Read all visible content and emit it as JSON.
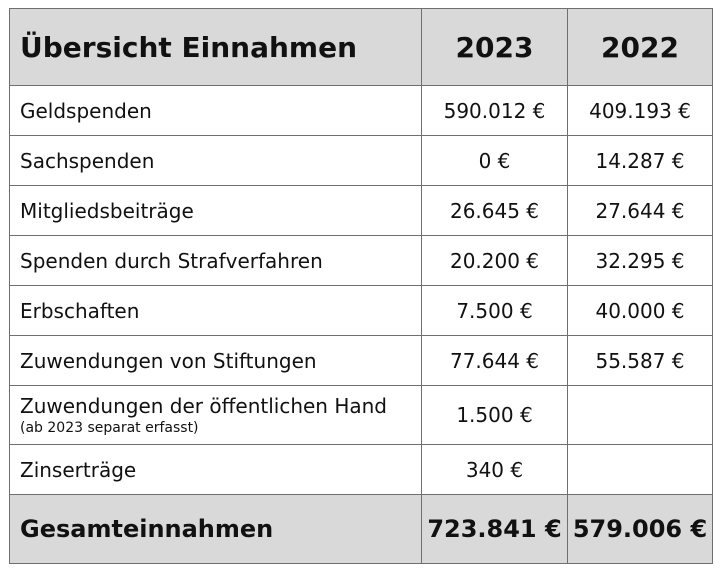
{
  "table": {
    "title": "Übersicht Einnahmen",
    "years": [
      "2023",
      "2022"
    ],
    "rows": [
      {
        "label": "Geldspenden",
        "v2023": "590.012 €",
        "v2022": "409.193 €"
      },
      {
        "label": "Sachspenden",
        "v2023": "0 €",
        "v2022": "14.287 €"
      },
      {
        "label": "Mitgliedsbeiträge",
        "v2023": "26.645 €",
        "v2022": "27.644 €"
      },
      {
        "label": "Spenden durch Strafverfahren",
        "v2023": "20.200 €",
        "v2022": "32.295 €"
      },
      {
        "label": "Erbschaften",
        "v2023": "7.500 €",
        "v2022": "40.000 €"
      },
      {
        "label": "Zuwendungen von Stiftungen",
        "v2023": "77.644 €",
        "v2022": "55.587 €"
      },
      {
        "label": "Zuwendungen der öffentlichen Hand",
        "note": "(ab 2023 separat erfasst)",
        "v2023": "1.500 €",
        "v2022": ""
      },
      {
        "label": "Zinserträge",
        "v2023": "340 €",
        "v2022": ""
      }
    ],
    "total": {
      "label": "Gesamteinnahmen",
      "v2023": "723.841 €",
      "v2022": "579.006 €"
    },
    "colors": {
      "header_bg": "#d9d9d9",
      "border": "#6f6f6f"
    }
  }
}
